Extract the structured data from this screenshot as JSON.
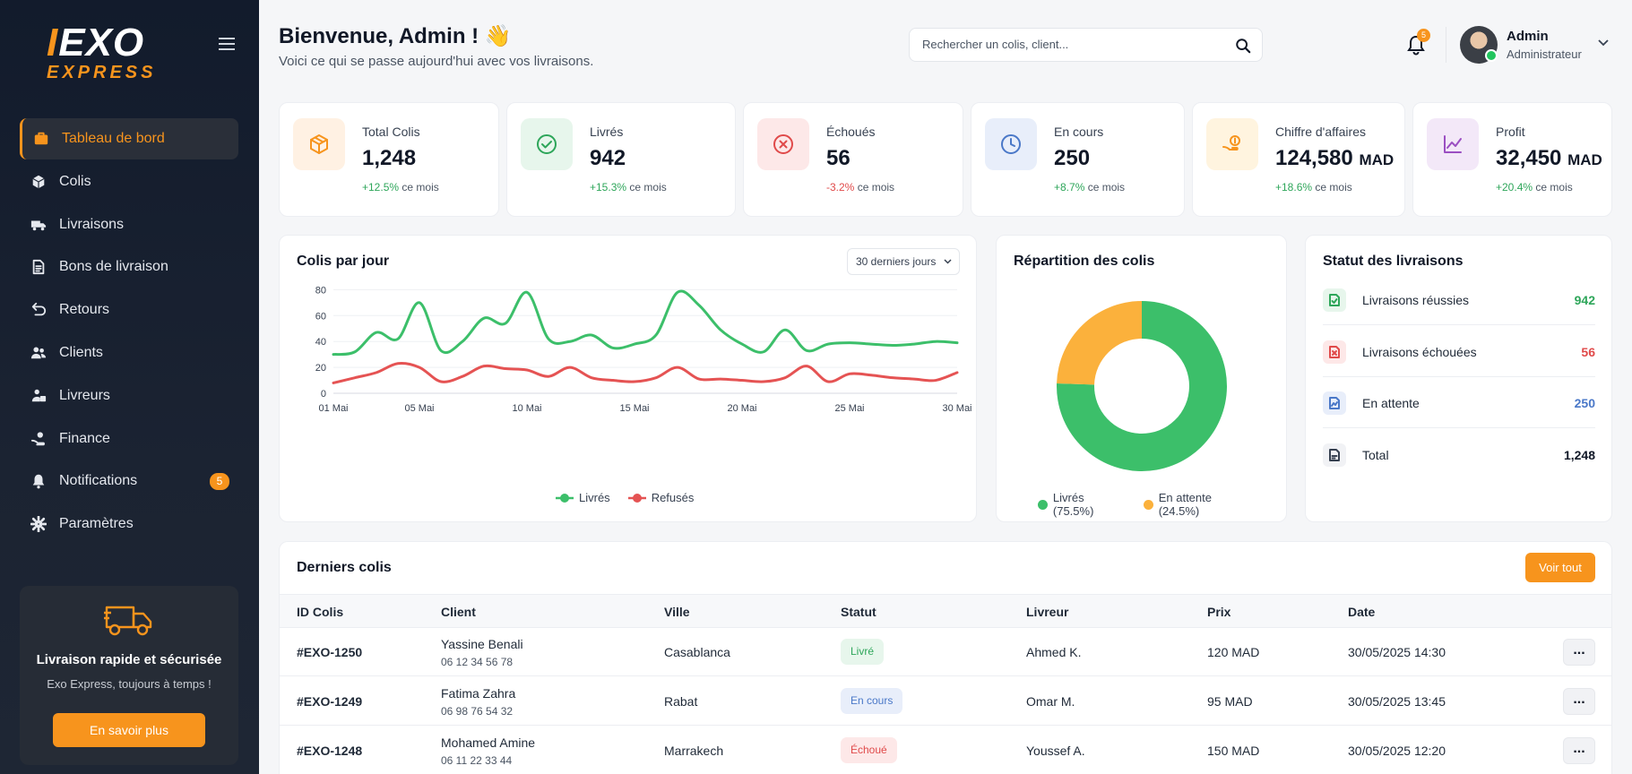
{
  "brand": {
    "logo_text": "EXO",
    "logo_sub": "EXPRESS",
    "accent": "#f7941d"
  },
  "sidebar": {
    "items": [
      {
        "label": "Tableau de bord",
        "icon": "dashboard-icon",
        "active": true
      },
      {
        "label": "Colis",
        "icon": "box-icon"
      },
      {
        "label": "Livraisons",
        "icon": "truck-icon"
      },
      {
        "label": "Bons de livraison",
        "icon": "document-icon"
      },
      {
        "label": "Retours",
        "icon": "return-icon"
      },
      {
        "label": "Clients",
        "icon": "users-icon"
      },
      {
        "label": "Livreurs",
        "icon": "courier-icon"
      },
      {
        "label": "Finance",
        "icon": "finance-icon"
      },
      {
        "label": "Notifications",
        "icon": "bell-icon",
        "badge": "5"
      },
      {
        "label": "Paramètres",
        "icon": "gear-icon"
      }
    ],
    "promo": {
      "title": "Livraison rapide et sécurisée",
      "subtitle": "Exo Express, toujours à temps !",
      "button": "En savoir plus"
    }
  },
  "header": {
    "title": "Bienvenue, Admin ! 👋",
    "subtitle": "Voici ce qui se passe aujourd'hui avec vos livraisons.",
    "search_placeholder": "Rechercher un colis, client...",
    "notif_count": "5",
    "user_name": "Admin",
    "user_role": "Administrateur"
  },
  "stats": [
    {
      "label": "Total Colis",
      "value": "1,248",
      "unit": "",
      "change": "+12.5%",
      "change_suffix": "ce mois",
      "positive": true,
      "icon": "package-icon",
      "bg": "#fff1e3",
      "fg": "#f7941d"
    },
    {
      "label": "Livrés",
      "value": "942",
      "unit": "",
      "change": "+15.3%",
      "change_suffix": "ce mois",
      "positive": true,
      "icon": "check-circle-icon",
      "bg": "#e7f6ec",
      "fg": "#2ea65a"
    },
    {
      "label": "Échoués",
      "value": "56",
      "unit": "",
      "change": "-3.2%",
      "change_suffix": "ce mois",
      "positive": false,
      "icon": "x-circle-icon",
      "bg": "#fde8e8",
      "fg": "#e04a4a"
    },
    {
      "label": "En cours",
      "value": "250",
      "unit": "",
      "change": "+8.7%",
      "change_suffix": "ce mois",
      "positive": true,
      "icon": "clock-icon",
      "bg": "#e8eefa",
      "fg": "#4a78c8"
    },
    {
      "label": "Chiffre d'affaires",
      "value": "124,580",
      "unit": "MAD",
      "change": "+18.6%",
      "change_suffix": "ce mois",
      "positive": true,
      "icon": "money-hand-icon",
      "bg": "#fff4df",
      "fg": "#f7941d"
    },
    {
      "label": "Profit",
      "value": "32,450",
      "unit": "MAD",
      "change": "+20.4%",
      "change_suffix": "ce mois",
      "positive": true,
      "icon": "trend-up-icon",
      "bg": "#f3e8f8",
      "fg": "#9b4fc2"
    }
  ],
  "line_chart": {
    "title": "Colis par jour",
    "range": "30 derniers jours",
    "chart_data": {
      "type": "line",
      "x": [
        1,
        2,
        3,
        4,
        5,
        6,
        7,
        8,
        9,
        10,
        11,
        12,
        13,
        14,
        15,
        16,
        17,
        18,
        19,
        20,
        21,
        22,
        23,
        24,
        25,
        26,
        27,
        28,
        29,
        30
      ],
      "xticks": [
        {
          "x": 1,
          "label": "01 Mai"
        },
        {
          "x": 5,
          "label": "05 Mai"
        },
        {
          "x": 10,
          "label": "10 Mai"
        },
        {
          "x": 15,
          "label": "15 Mai"
        },
        {
          "x": 20,
          "label": "20 Mai"
        },
        {
          "x": 25,
          "label": "25 Mai"
        },
        {
          "x": 30,
          "label": "30 Mai"
        }
      ],
      "ylim": [
        0,
        100
      ],
      "yticks": [
        0,
        20,
        40,
        60,
        80,
        100
      ],
      "series": [
        {
          "name": "Livrés",
          "color": "#3cbf6a",
          "values": [
            30,
            32,
            47,
            42,
            70,
            33,
            40,
            58,
            54,
            78,
            42,
            40,
            45,
            35,
            38,
            45,
            78,
            68,
            49,
            38,
            32,
            49,
            33,
            38,
            39,
            38,
            37,
            38,
            40,
            39
          ]
        },
        {
          "name": "Refusés",
          "color": "#e55353",
          "values": [
            8,
            12,
            16,
            23,
            20,
            9,
            13,
            21,
            19,
            18,
            13,
            20,
            12,
            10,
            9,
            12,
            20,
            11,
            11,
            10,
            9,
            12,
            21,
            9,
            15,
            14,
            12,
            11,
            10,
            16
          ]
        }
      ]
    }
  },
  "donut": {
    "title": "Répartition des colis",
    "chart_data": {
      "type": "pie",
      "categories": [
        "Livrés",
        "En attente"
      ],
      "values": [
        75.5,
        24.5
      ],
      "colors": [
        "#3cbf6a",
        "#fbb13c"
      ],
      "legend_labels": [
        "Livrés (75.5%)",
        "En attente (24.5%)"
      ]
    }
  },
  "status": {
    "title": "Statut des livraisons",
    "rows": [
      {
        "label": "Livraisons réussies",
        "value": "942",
        "color": "#2ea65a",
        "bg": "#e7f6ec",
        "icon": "success-doc-icon"
      },
      {
        "label": "Livraisons échouées",
        "value": "56",
        "color": "#e04a4a",
        "bg": "#fde8e8",
        "icon": "failed-doc-icon"
      },
      {
        "label": "En attente",
        "value": "250",
        "color": "#4a78c8",
        "bg": "#e8eefa",
        "icon": "pending-doc-icon"
      },
      {
        "label": "Total",
        "value": "1,248",
        "color": "#111827",
        "bg": "#f1f2f5",
        "icon": "total-doc-icon"
      }
    ]
  },
  "table": {
    "title": "Derniers colis",
    "button": "Voir tout",
    "columns": [
      "ID Colis",
      "Client",
      "Ville",
      "Statut",
      "Livreur",
      "Prix",
      "Date"
    ],
    "rows": [
      {
        "id": "#EXO-1250",
        "client": "Yassine Benali",
        "phone": "06 12 34 56 78",
        "ville": "Casablanca",
        "statut": "Livré",
        "livreur": "Ahmed K.",
        "prix": "120 MAD",
        "date": "30/05/2025 14:30",
        "sbg": "#e7f6ec",
        "sfg": "#2ea65a"
      },
      {
        "id": "#EXO-1249",
        "client": "Fatima Zahra",
        "phone": "06 98 76 54 32",
        "ville": "Rabat",
        "statut": "En cours",
        "livreur": "Omar M.",
        "prix": "95 MAD",
        "date": "30/05/2025 13:45",
        "sbg": "#e8eefa",
        "sfg": "#4a78c8"
      },
      {
        "id": "#EXO-1248",
        "client": "Mohamed Amine",
        "phone": "06 11 22 33 44",
        "ville": "Marrakech",
        "statut": "Échoué",
        "livreur": "Youssef A.",
        "prix": "150 MAD",
        "date": "30/05/2025 12:20",
        "sbg": "#fde8e8",
        "sfg": "#e04a4a"
      }
    ],
    "row_action": "..."
  }
}
